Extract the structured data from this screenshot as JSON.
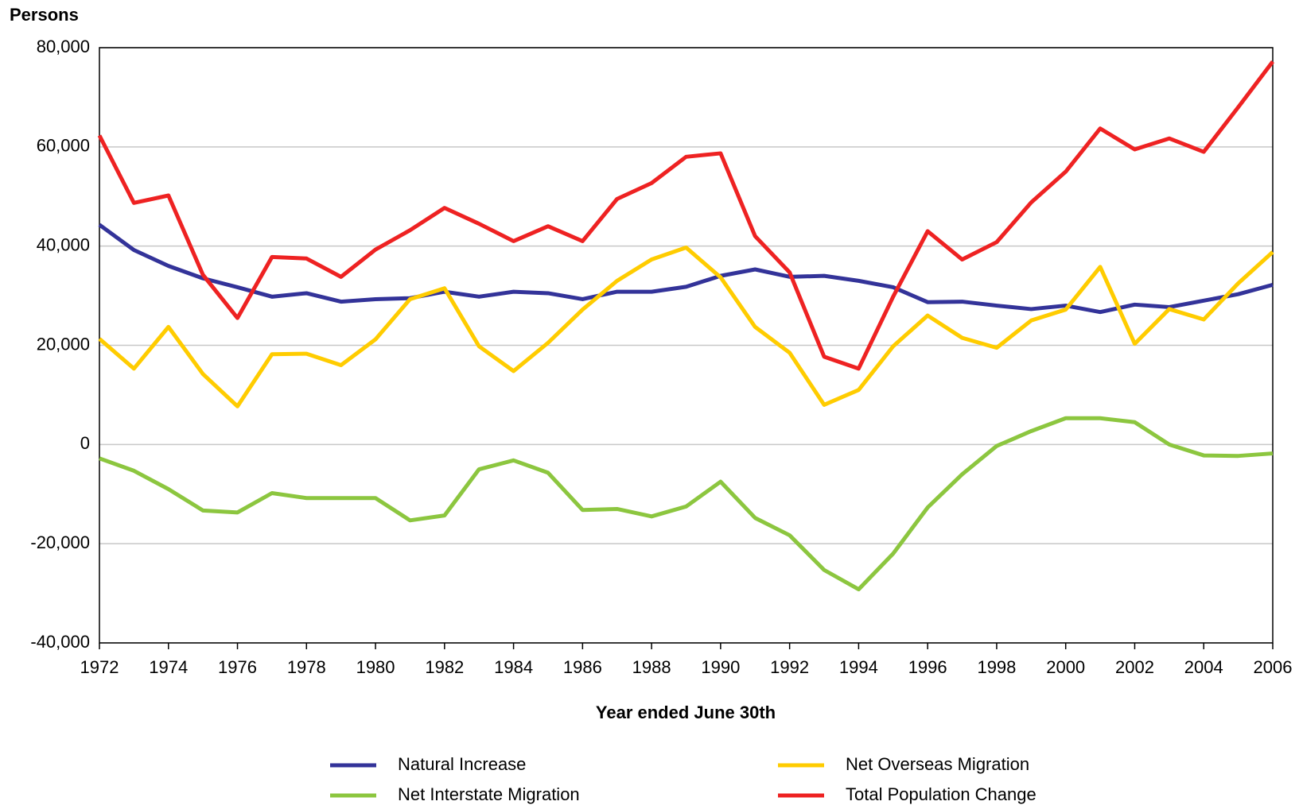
{
  "chart_data": {
    "type": "line",
    "y_label": "Persons",
    "x_label": "Year ended June 30th",
    "x": [
      1972,
      1973,
      1974,
      1975,
      1976,
      1977,
      1978,
      1979,
      1980,
      1981,
      1982,
      1983,
      1984,
      1985,
      1986,
      1987,
      1988,
      1989,
      1990,
      1991,
      1992,
      1993,
      1994,
      1995,
      1996,
      1997,
      1998,
      1999,
      2000,
      2001,
      2002,
      2003,
      2004,
      2005,
      2006
    ],
    "series": [
      {
        "name": "Natural Increase",
        "color": "#333399",
        "values": [
          44300,
          39200,
          36000,
          33500,
          31700,
          29800,
          30500,
          28800,
          29300,
          29500,
          30800,
          29800,
          30800,
          30500,
          29300,
          30800,
          30800,
          31800,
          34000,
          35300,
          33800,
          34000,
          33000,
          31700,
          28700,
          28800,
          28000,
          27300,
          28000,
          26700,
          28200,
          27700,
          29000,
          30300,
          32200
        ]
      },
      {
        "name": "Net Overseas Migration",
        "color": "#ffcc00",
        "values": [
          21300,
          15300,
          23700,
          14200,
          7700,
          18200,
          18300,
          16000,
          21200,
          29300,
          31500,
          19800,
          14800,
          20500,
          27200,
          33000,
          37300,
          39700,
          33700,
          23700,
          18500,
          8000,
          11000,
          19800,
          26000,
          21500,
          19500,
          25000,
          27200,
          35800,
          20300,
          27300,
          25200,
          32500,
          38800
        ]
      },
      {
        "name": "Net Interstate Migration",
        "color": "#8cc63f",
        "values": [
          -2800,
          -5300,
          -9000,
          -13300,
          -13700,
          -9800,
          -10800,
          -10800,
          -10800,
          -15300,
          -14300,
          -5000,
          -3200,
          -5700,
          -13200,
          -13000,
          -14500,
          -12500,
          -7500,
          -14800,
          -18300,
          -25300,
          -29200,
          -22000,
          -12700,
          -6000,
          -300,
          2700,
          5300,
          5300,
          4500,
          0,
          -2200,
          -2300,
          -1800
        ]
      },
      {
        "name": "Total Population Change",
        "color": "#ee2222",
        "values": [
          62300,
          48700,
          50200,
          34200,
          25500,
          37800,
          37500,
          33800,
          39300,
          43200,
          47700,
          44500,
          41000,
          44000,
          41000,
          49500,
          52700,
          58000,
          58700,
          42000,
          34700,
          17700,
          15300,
          29800,
          43000,
          37300,
          40800,
          48800,
          55000,
          63700,
          59500,
          61700,
          59000,
          68000,
          77200
        ]
      }
    ],
    "xlim": [
      1972,
      2006
    ],
    "xticks": [
      1972,
      1974,
      1976,
      1978,
      1980,
      1982,
      1984,
      1986,
      1988,
      1990,
      1992,
      1994,
      1996,
      1998,
      2000,
      2002,
      2004,
      2006
    ],
    "ylim": [
      -40000,
      80000
    ],
    "yticks": [
      {
        "value": -40000,
        "label": "-40,000"
      },
      {
        "value": -20000,
        "label": "-20,000"
      },
      0,
      {
        "value": 20000,
        "label": "20,000"
      },
      {
        "value": 40000,
        "label": "40,000"
      },
      {
        "value": 60000,
        "label": "60,000"
      },
      {
        "value": 80000,
        "label": "80,000"
      }
    ],
    "grid": true,
    "legend": "bottom"
  }
}
